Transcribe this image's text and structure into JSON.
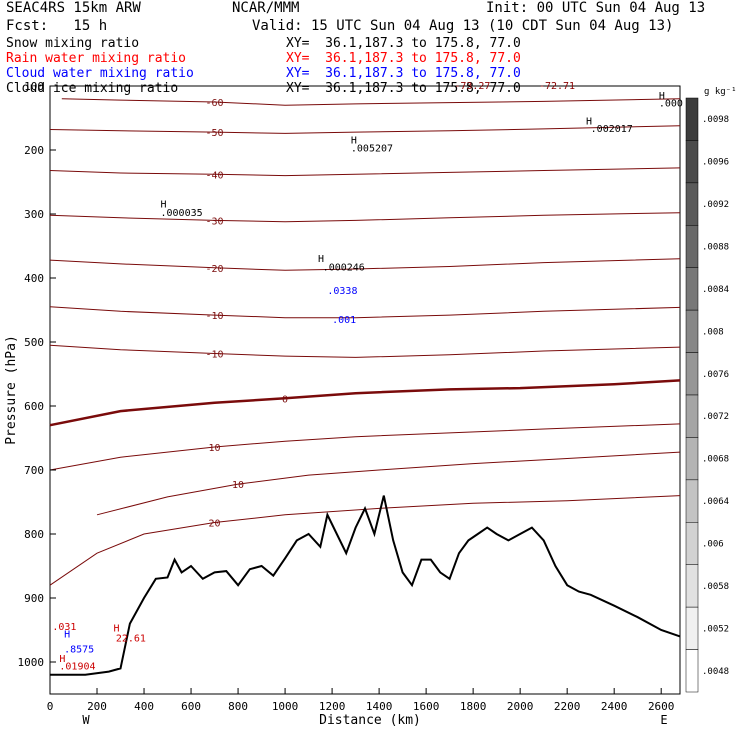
{
  "header": {
    "title": "SEAC4RS 15km ARW",
    "center": "NCAR/MMM",
    "init": "Init: 00 UTC Sun 04 Aug 13",
    "fcst": "Fcst:   15 h",
    "valid": "Valid: 15 UTC Sun 04 Aug 13 (10 CDT Sun 04 Aug 13)"
  },
  "legend": [
    {
      "label": "Snow mixing ratio",
      "xy": "XY=  36.1,187.3 to 175.8, 77.0",
      "color": "#000000"
    },
    {
      "label": "Rain water mixing ratio",
      "xy": "XY=  36.1,187.3 to 175.8, 77.0",
      "color": "#ff0000"
    },
    {
      "label": "Cloud water mixing ratio",
      "xy": "XY=  36.1,187.3 to 175.8, 77.0",
      "color": "#0000ff"
    },
    {
      "label": "Cloud ice mixing ratio",
      "xy": "XY=  36.1,187.3 to 175.8, 77.0",
      "color": "#000000"
    }
  ],
  "chart_data": {
    "type": "cross-section contour",
    "xlabel": "Distance (km)",
    "ylabel": "Pressure (hPa)",
    "x_ticks": [
      "0",
      "200",
      "400",
      "600",
      "800",
      "1000",
      "1200",
      "1400",
      "1600",
      "1800",
      "2000",
      "2200",
      "2400",
      "2600"
    ],
    "y_ticks": [
      "100",
      "200",
      "300",
      "400",
      "500",
      "600",
      "700",
      "800",
      "900",
      "1000"
    ],
    "x_endpoints": {
      "left": "W",
      "right": "E"
    },
    "xlim": [
      0,
      2680
    ],
    "ylim": [
      1050,
      100
    ],
    "colorbar": {
      "unit": "g kg⁻¹",
      "ticks": [
        ".0098",
        ".0096",
        ".0092",
        ".0088",
        ".0084",
        ".008",
        ".0076",
        ".0072",
        ".0068",
        ".0064",
        ".006",
        ".0058",
        ".0052",
        ".0048"
      ]
    },
    "temperature_contours": [
      {
        "label": "-60",
        "points": [
          [
            50,
            120
          ],
          [
            300,
            122
          ],
          [
            700,
            125
          ],
          [
            1000,
            130
          ],
          [
            1300,
            128
          ],
          [
            1700,
            126
          ],
          [
            2100,
            124
          ],
          [
            2680,
            120
          ]
        ]
      },
      {
        "label": "-50",
        "points": [
          [
            0,
            168
          ],
          [
            300,
            170
          ],
          [
            700,
            172
          ],
          [
            1000,
            174
          ],
          [
            1300,
            172
          ],
          [
            1700,
            170
          ],
          [
            2100,
            167
          ],
          [
            2680,
            162
          ]
        ]
      },
      {
        "label": "-40",
        "points": [
          [
            0,
            232
          ],
          [
            300,
            236
          ],
          [
            700,
            238
          ],
          [
            1000,
            240
          ],
          [
            1300,
            238
          ],
          [
            1700,
            235
          ],
          [
            2100,
            232
          ],
          [
            2680,
            228
          ]
        ]
      },
      {
        "label": "-30",
        "points": [
          [
            0,
            302
          ],
          [
            300,
            306
          ],
          [
            700,
            310
          ],
          [
            1000,
            312
          ],
          [
            1300,
            310
          ],
          [
            1700,
            306
          ],
          [
            2100,
            302
          ],
          [
            2680,
            298
          ]
        ]
      },
      {
        "label": "-20",
        "points": [
          [
            0,
            372
          ],
          [
            300,
            378
          ],
          [
            700,
            384
          ],
          [
            1000,
            388
          ],
          [
            1300,
            386
          ],
          [
            1700,
            382
          ],
          [
            2100,
            376
          ],
          [
            2680,
            370
          ]
        ]
      },
      {
        "label": "-10",
        "points": [
          [
            0,
            445
          ],
          [
            300,
            452
          ],
          [
            700,
            458
          ],
          [
            1000,
            462
          ],
          [
            1300,
            462
          ],
          [
            1700,
            458
          ],
          [
            2100,
            452
          ],
          [
            2680,
            446
          ]
        ]
      },
      {
        "label": "-10",
        "points": [
          [
            0,
            505
          ],
          [
            300,
            512
          ],
          [
            700,
            518
          ],
          [
            1000,
            522
          ],
          [
            1300,
            524
          ],
          [
            1700,
            520
          ],
          [
            2100,
            514
          ],
          [
            2680,
            508
          ]
        ]
      },
      {
        "label": "0",
        "points": [
          [
            0,
            630
          ],
          [
            300,
            608
          ],
          [
            700,
            595
          ],
          [
            1000,
            588
          ],
          [
            1300,
            580
          ],
          [
            1700,
            574
          ],
          [
            2000,
            572
          ],
          [
            2400,
            566
          ],
          [
            2680,
            560
          ]
        ]
      },
      {
        "label": "10",
        "points": [
          [
            0,
            700
          ],
          [
            300,
            680
          ],
          [
            700,
            664
          ],
          [
            1000,
            655
          ],
          [
            1300,
            648
          ],
          [
            1700,
            642
          ],
          [
            2100,
            636
          ],
          [
            2680,
            628
          ]
        ]
      },
      {
        "label": "10",
        "points": [
          [
            200,
            770
          ],
          [
            500,
            742
          ],
          [
            800,
            722
          ],
          [
            1100,
            708
          ],
          [
            1400,
            700
          ],
          [
            1800,
            690
          ],
          [
            2200,
            682
          ],
          [
            2680,
            672
          ]
        ]
      },
      {
        "label": "20",
        "points": [
          [
            0,
            880
          ],
          [
            200,
            830
          ],
          [
            400,
            800
          ],
          [
            700,
            782
          ],
          [
            1000,
            770
          ],
          [
            1400,
            760
          ],
          [
            1800,
            752
          ],
          [
            2200,
            748
          ],
          [
            2680,
            740
          ]
        ]
      }
    ],
    "terrain_points": [
      [
        0,
        1020
      ],
      [
        150,
        1020
      ],
      [
        250,
        1015
      ],
      [
        300,
        1010
      ],
      [
        340,
        940
      ],
      [
        400,
        900
      ],
      [
        450,
        870
      ],
      [
        500,
        868
      ],
      [
        530,
        840
      ],
      [
        560,
        860
      ],
      [
        600,
        850
      ],
      [
        650,
        870
      ],
      [
        700,
        860
      ],
      [
        750,
        858
      ],
      [
        800,
        880
      ],
      [
        850,
        855
      ],
      [
        900,
        850
      ],
      [
        950,
        865
      ],
      [
        1000,
        838
      ],
      [
        1050,
        810
      ],
      [
        1100,
        800
      ],
      [
        1150,
        820
      ],
      [
        1180,
        770
      ],
      [
        1220,
        800
      ],
      [
        1260,
        830
      ],
      [
        1300,
        790
      ],
      [
        1340,
        760
      ],
      [
        1380,
        800
      ],
      [
        1420,
        740
      ],
      [
        1460,
        810
      ],
      [
        1500,
        860
      ],
      [
        1540,
        880
      ],
      [
        1580,
        840
      ],
      [
        1620,
        840
      ],
      [
        1660,
        860
      ],
      [
        1700,
        870
      ],
      [
        1740,
        830
      ],
      [
        1780,
        810
      ],
      [
        1820,
        800
      ],
      [
        1860,
        790
      ],
      [
        1900,
        800
      ],
      [
        1950,
        810
      ],
      [
        2000,
        800
      ],
      [
        2050,
        790
      ],
      [
        2100,
        810
      ],
      [
        2150,
        850
      ],
      [
        2200,
        880
      ],
      [
        2250,
        890
      ],
      [
        2300,
        895
      ],
      [
        2400,
        912
      ],
      [
        2500,
        930
      ],
      [
        2600,
        950
      ],
      [
        2680,
        960
      ]
    ],
    "annotations": [
      {
        "text": "H",
        "x": 2280,
        "y": 160,
        "color": "#000000"
      },
      {
        "text": ".002017",
        "x": 2300,
        "y": 172,
        "color": "#000000"
      },
      {
        "text": "H",
        "x": 1280,
        "y": 190,
        "color": "#000000"
      },
      {
        "text": ".005207",
        "x": 1280,
        "y": 202,
        "color": "#000000"
      },
      {
        "text": "H",
        "x": 470,
        "y": 290,
        "color": "#000000"
      },
      {
        "text": ".000035",
        "x": 470,
        "y": 303,
        "color": "#000000"
      },
      {
        "text": "H",
        "x": 1140,
        "y": 375,
        "color": "#000000"
      },
      {
        "text": ".000246",
        "x": 1160,
        "y": 388,
        "color": "#000000"
      },
      {
        "text": ".0338",
        "x": 1180,
        "y": 425,
        "color": "#0000ff"
      },
      {
        "text": ".001",
        "x": 1200,
        "y": 470,
        "color": "#0000ff"
      },
      {
        "text": "H",
        "x": 60,
        "y": 962,
        "color": "#0000ff"
      },
      {
        "text": ".8575",
        "x": 60,
        "y": 985,
        "color": "#0000ff"
      },
      {
        "text": "H",
        "x": 40,
        "y": 1000,
        "color": "#cc0000"
      },
      {
        "text": ".01904",
        "x": 40,
        "y": 1012,
        "color": "#cc0000"
      },
      {
        "text": "H",
        "x": 270,
        "y": 952,
        "color": "#cc0000"
      },
      {
        "text": "22.61",
        "x": 280,
        "y": 968,
        "color": "#cc0000"
      },
      {
        "text": ".031",
        "x": 10,
        "y": 950,
        "color": "#cc0000"
      },
      {
        "text": "-73.27",
        "x": 1720,
        "y": 105,
        "color": "#8b0000"
      },
      {
        "text": "-72.71",
        "x": 2080,
        "y": 105,
        "color": "#8b0000"
      },
      {
        "text": "H",
        "x": 2590,
        "y": 120,
        "color": "#000000"
      },
      {
        "text": ".000",
        "x": 2590,
        "y": 132,
        "color": "#000000"
      }
    ]
  }
}
